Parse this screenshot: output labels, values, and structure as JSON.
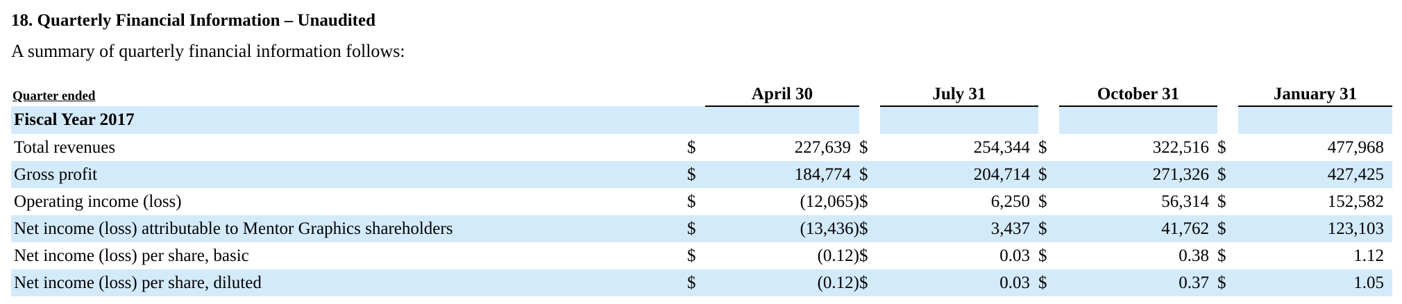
{
  "section": {
    "title": "18. Quarterly Financial Information – Unaudited",
    "intro": "A summary of quarterly financial information follows:"
  },
  "table": {
    "quarter_label": "Quarter ended",
    "columns": [
      "April 30",
      "July 31",
      "October 31",
      "January 31"
    ],
    "fiscal_year_label": "Fiscal Year 2017",
    "currency_symbol": "$",
    "rows": [
      {
        "label": "Total revenues",
        "values": [
          "227,639",
          "254,344",
          "322,516",
          "477,968"
        ]
      },
      {
        "label": "Gross profit",
        "values": [
          "184,774",
          "204,714",
          "271,326",
          "427,425"
        ]
      },
      {
        "label": "Operating income (loss)",
        "values": [
          "(12,065)",
          "6,250",
          "56,314",
          "152,582"
        ]
      },
      {
        "label": "Net income (loss) attributable to Mentor Graphics shareholders",
        "values": [
          "(13,436)",
          "3,437",
          "41,762",
          "123,103"
        ]
      },
      {
        "label": "Net income (loss) per share, basic",
        "values": [
          "(0.12)",
          "0.03",
          "0.38",
          "1.12"
        ]
      },
      {
        "label": "Net income (loss) per share, diluted",
        "values": [
          "(0.12)",
          "0.03",
          "0.37",
          "1.05"
        ]
      }
    ]
  },
  "colors": {
    "band": "#d3eafa",
    "text": "#000000"
  }
}
